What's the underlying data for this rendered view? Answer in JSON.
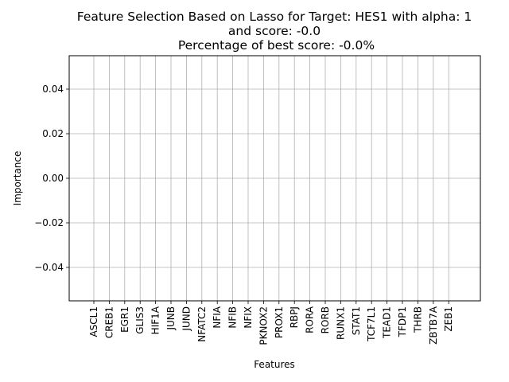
{
  "chart_data": {
    "type": "bar",
    "title_lines": [
      "Feature Selection Based on Lasso for Target: HES1 with alpha: 1",
      "and score: -0.0",
      " Percentage of best score: -0.0%"
    ],
    "xlabel": "Features",
    "ylabel": "Importance",
    "categories": [
      "ASCL1",
      "CREB1",
      "EGR1",
      "GLIS3",
      "HIF1A",
      "JUNB",
      "JUND",
      "NFATC2",
      "NFIA",
      "NFIB",
      "NFIX",
      "PKNOX2",
      "PROX1",
      "RBPJ",
      "RORA",
      "RORB",
      "RUNX1",
      "STAT1",
      "TCF7L1",
      "TEAD1",
      "TFDP1",
      "THRB",
      "ZBTB7A",
      "ZEB1"
    ],
    "values": [
      0,
      0,
      0,
      0,
      0,
      0,
      0,
      0,
      0,
      0,
      0,
      0,
      0,
      0,
      0,
      0,
      0,
      0,
      0,
      0,
      0,
      0,
      0,
      0
    ],
    "yticks": [
      -0.04,
      -0.02,
      0.0,
      0.02,
      0.04
    ],
    "ytick_labels": [
      "−0.04",
      "−0.02",
      "0.00",
      "0.02",
      "0.04"
    ],
    "ylim": [
      -0.055,
      0.055
    ],
    "grid": true,
    "colors": {
      "bar": "#1f77b4",
      "grid": "#b0b0b0",
      "axes": "#000000"
    }
  }
}
